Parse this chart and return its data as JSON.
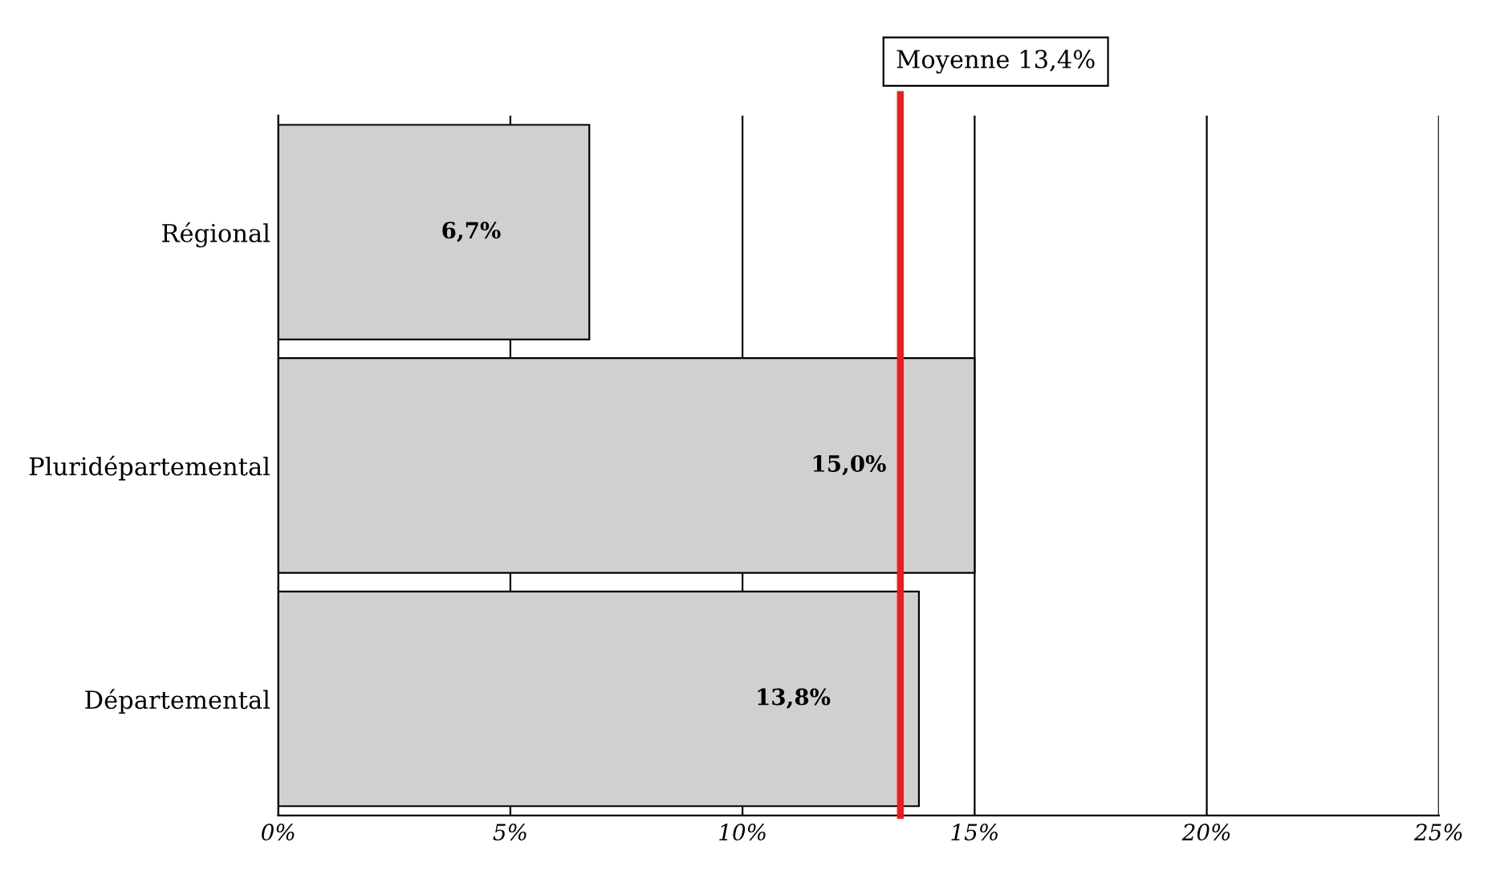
{
  "chart_data": {
    "type": "bar",
    "orientation": "horizontal",
    "categories": [
      "Régional",
      "Pluridépartemental",
      "Départemental"
    ],
    "values": [
      6.7,
      15.0,
      13.8
    ],
    "value_labels": [
      "6,7%",
      "15,0%",
      "13,8%"
    ],
    "color": "#d0d0d0",
    "xlim": [
      0,
      25
    ],
    "xticks": [
      {
        "value": 0,
        "label": "0%"
      },
      {
        "value": 5,
        "label": "5%"
      },
      {
        "value": 10,
        "label": "10%"
      },
      {
        "value": 15,
        "label": "15%"
      },
      {
        "value": 20,
        "label": "20%"
      },
      {
        "value": 25,
        "label": "25%"
      }
    ],
    "grid": "x",
    "ref_lines": [
      {
        "axis": "x",
        "value": 13.4,
        "label": "Moyenne 13,4%",
        "color": "#ee1c1c"
      }
    ]
  }
}
